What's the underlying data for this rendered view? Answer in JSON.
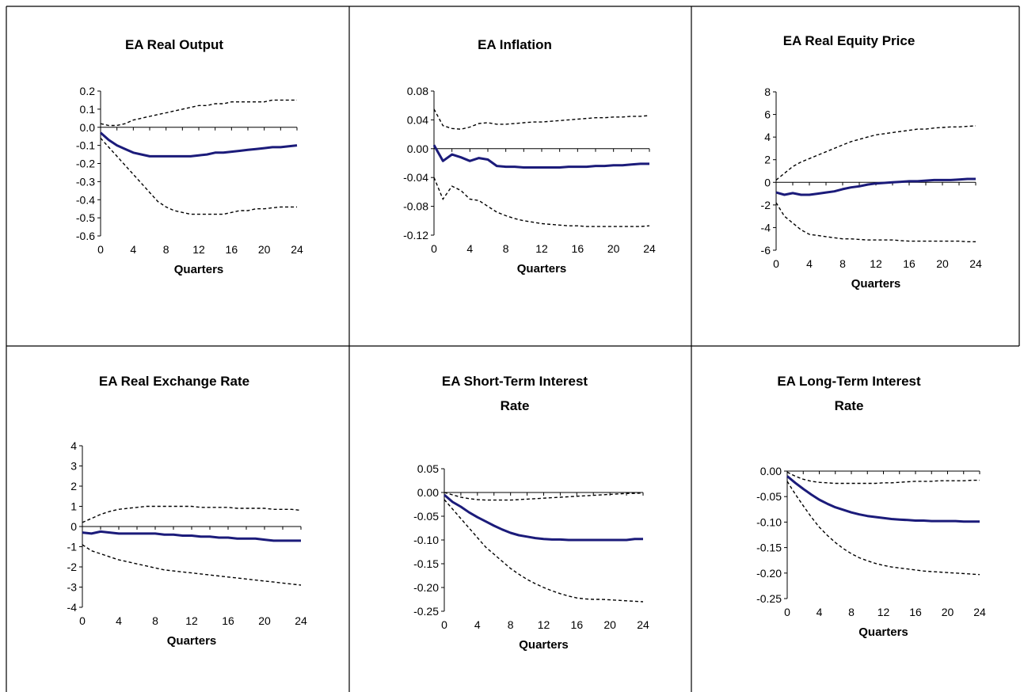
{
  "chart_data": [
    {
      "type": "line",
      "title": [
        "EA Real Output"
      ],
      "xlabel": "Quarters",
      "xlim": [
        0,
        24
      ],
      "xticks": [
        0,
        4,
        8,
        12,
        16,
        20,
        24
      ],
      "ylim": [
        -0.6,
        0.2
      ],
      "yticks": [
        "0.2",
        "0.1",
        "0.0",
        "-0.1",
        "-0.2",
        "-0.3",
        "-0.4",
        "-0.5",
        "-0.6"
      ],
      "x": [
        0,
        1,
        2,
        3,
        4,
        5,
        6,
        7,
        8,
        9,
        10,
        11,
        12,
        13,
        14,
        15,
        16,
        17,
        18,
        19,
        20,
        21,
        22,
        23,
        24
      ],
      "series": [
        {
          "role": "median",
          "values": [
            -0.03,
            -0.07,
            -0.1,
            -0.12,
            -0.14,
            -0.15,
            -0.16,
            -0.16,
            -0.16,
            -0.16,
            -0.16,
            -0.16,
            -0.155,
            -0.15,
            -0.14,
            -0.14,
            -0.135,
            -0.13,
            -0.125,
            -0.12,
            -0.115,
            -0.11,
            -0.11,
            -0.105,
            -0.1
          ]
        },
        {
          "role": "upper",
          "values": [
            0.02,
            0.01,
            0.01,
            0.02,
            0.04,
            0.05,
            0.06,
            0.07,
            0.08,
            0.09,
            0.1,
            0.11,
            0.12,
            0.12,
            0.13,
            0.13,
            0.14,
            0.14,
            0.14,
            0.14,
            0.14,
            0.15,
            0.15,
            0.15,
            0.15
          ]
        },
        {
          "role": "lower",
          "values": [
            -0.06,
            -0.11,
            -0.16,
            -0.21,
            -0.26,
            -0.31,
            -0.36,
            -0.41,
            -0.44,
            -0.46,
            -0.47,
            -0.48,
            -0.48,
            -0.48,
            -0.48,
            -0.48,
            -0.47,
            -0.46,
            -0.46,
            -0.45,
            -0.45,
            -0.445,
            -0.44,
            -0.44,
            -0.44
          ]
        }
      ]
    },
    {
      "type": "line",
      "title": [
        "EA Inflation"
      ],
      "xlabel": "Quarters",
      "xlim": [
        0,
        24
      ],
      "xticks": [
        0,
        4,
        8,
        12,
        16,
        20,
        24
      ],
      "ylim": [
        -0.12,
        0.08
      ],
      "yticks": [
        "0.08",
        "0.04",
        "0.00",
        "-0.04",
        "-0.08",
        "-0.12"
      ],
      "x": [
        0,
        1,
        2,
        3,
        4,
        5,
        6,
        7,
        8,
        9,
        10,
        11,
        12,
        13,
        14,
        15,
        16,
        17,
        18,
        19,
        20,
        21,
        22,
        23,
        24
      ],
      "series": [
        {
          "role": "median",
          "values": [
            0.005,
            -0.017,
            -0.008,
            -0.012,
            -0.017,
            -0.013,
            -0.015,
            -0.024,
            -0.025,
            -0.025,
            -0.026,
            -0.026,
            -0.026,
            -0.026,
            -0.026,
            -0.025,
            -0.025,
            -0.025,
            -0.024,
            -0.024,
            -0.023,
            -0.023,
            -0.022,
            -0.021,
            -0.021
          ]
        },
        {
          "role": "upper",
          "values": [
            0.055,
            0.032,
            0.028,
            0.027,
            0.03,
            0.035,
            0.036,
            0.034,
            0.034,
            0.035,
            0.036,
            0.037,
            0.037,
            0.038,
            0.039,
            0.04,
            0.041,
            0.042,
            0.043,
            0.043,
            0.044,
            0.044,
            0.045,
            0.045,
            0.046
          ]
        },
        {
          "role": "lower",
          "values": [
            -0.04,
            -0.07,
            -0.052,
            -0.058,
            -0.07,
            -0.072,
            -0.08,
            -0.088,
            -0.093,
            -0.097,
            -0.1,
            -0.102,
            -0.104,
            -0.105,
            -0.106,
            -0.107,
            -0.107,
            -0.108,
            -0.108,
            -0.108,
            -0.108,
            -0.108,
            -0.108,
            -0.108,
            -0.107
          ]
        }
      ]
    },
    {
      "type": "line",
      "title": [
        "EA Real Equity Price"
      ],
      "xlabel": "Quarters",
      "xlim": [
        0,
        24
      ],
      "xticks": [
        0,
        4,
        8,
        12,
        16,
        20,
        24
      ],
      "ylim": [
        -6,
        8
      ],
      "yticks": [
        "8",
        "6",
        "4",
        "2",
        "0",
        "-2",
        "-4",
        "-6"
      ],
      "x": [
        0,
        1,
        2,
        3,
        4,
        5,
        6,
        7,
        8,
        9,
        10,
        11,
        12,
        13,
        14,
        15,
        16,
        17,
        18,
        19,
        20,
        21,
        22,
        23,
        24
      ],
      "series": [
        {
          "role": "median",
          "values": [
            -0.9,
            -1.1,
            -0.95,
            -1.1,
            -1.1,
            -1.0,
            -0.9,
            -0.8,
            -0.6,
            -0.45,
            -0.35,
            -0.2,
            -0.1,
            -0.05,
            0.0,
            0.05,
            0.1,
            0.1,
            0.15,
            0.2,
            0.2,
            0.2,
            0.25,
            0.3,
            0.3
          ]
        },
        {
          "role": "upper",
          "values": [
            0.2,
            0.8,
            1.4,
            1.8,
            2.1,
            2.4,
            2.7,
            3.0,
            3.3,
            3.6,
            3.8,
            4.0,
            4.2,
            4.3,
            4.4,
            4.5,
            4.6,
            4.7,
            4.7,
            4.8,
            4.85,
            4.9,
            4.9,
            4.95,
            5.0
          ]
        },
        {
          "role": "lower",
          "values": [
            -1.8,
            -3.0,
            -3.6,
            -4.2,
            -4.6,
            -4.7,
            -4.8,
            -4.9,
            -5.0,
            -5.0,
            -5.05,
            -5.1,
            -5.1,
            -5.1,
            -5.1,
            -5.15,
            -5.2,
            -5.2,
            -5.2,
            -5.2,
            -5.2,
            -5.2,
            -5.2,
            -5.25,
            -5.25
          ]
        }
      ]
    },
    {
      "type": "line",
      "title": [
        "EA Real Exchange Rate"
      ],
      "xlabel": "Quarters",
      "xlim": [
        0,
        24
      ],
      "xticks": [
        0,
        4,
        8,
        12,
        16,
        20,
        24
      ],
      "ylim": [
        -4,
        4
      ],
      "yticks": [
        "4",
        "3",
        "2",
        "1",
        "0",
        "-1",
        "-2",
        "-3",
        "-4"
      ],
      "x": [
        0,
        1,
        2,
        3,
        4,
        5,
        6,
        7,
        8,
        9,
        10,
        11,
        12,
        13,
        14,
        15,
        16,
        17,
        18,
        19,
        20,
        21,
        22,
        23,
        24
      ],
      "series": [
        {
          "role": "median",
          "values": [
            -0.3,
            -0.35,
            -0.25,
            -0.3,
            -0.35,
            -0.35,
            -0.35,
            -0.35,
            -0.35,
            -0.4,
            -0.4,
            -0.45,
            -0.45,
            -0.5,
            -0.5,
            -0.55,
            -0.55,
            -0.6,
            -0.6,
            -0.6,
            -0.65,
            -0.7,
            -0.7,
            -0.7,
            -0.7
          ]
        },
        {
          "role": "upper",
          "values": [
            0.2,
            0.4,
            0.6,
            0.75,
            0.85,
            0.9,
            0.95,
            1.0,
            1.0,
            1.0,
            1.0,
            1.0,
            1.0,
            0.95,
            0.95,
            0.95,
            0.95,
            0.9,
            0.9,
            0.9,
            0.9,
            0.85,
            0.85,
            0.85,
            0.8
          ]
        },
        {
          "role": "lower",
          "values": [
            -0.9,
            -1.2,
            -1.35,
            -1.5,
            -1.65,
            -1.75,
            -1.85,
            -1.95,
            -2.05,
            -2.15,
            -2.2,
            -2.25,
            -2.3,
            -2.35,
            -2.4,
            -2.45,
            -2.5,
            -2.55,
            -2.6,
            -2.65,
            -2.7,
            -2.75,
            -2.8,
            -2.85,
            -2.9
          ]
        }
      ]
    },
    {
      "type": "line",
      "title": [
        "EA Short-Term Interest",
        "Rate"
      ],
      "xlabel": "Quarters",
      "xlim": [
        0,
        24
      ],
      "xticks": [
        0,
        4,
        8,
        12,
        16,
        20,
        24
      ],
      "ylim": [
        -0.25,
        0.05
      ],
      "yticks": [
        "0.05",
        "0.00",
        "-0.05",
        "-0.10",
        "-0.15",
        "-0.20",
        "-0.25"
      ],
      "x": [
        0,
        1,
        2,
        3,
        4,
        5,
        6,
        7,
        8,
        9,
        10,
        11,
        12,
        13,
        14,
        15,
        16,
        17,
        18,
        19,
        20,
        21,
        22,
        23,
        24
      ],
      "series": [
        {
          "role": "median",
          "values": [
            -0.005,
            -0.02,
            -0.03,
            -0.042,
            -0.052,
            -0.061,
            -0.07,
            -0.078,
            -0.085,
            -0.09,
            -0.093,
            -0.096,
            -0.098,
            -0.099,
            -0.099,
            -0.1,
            -0.1,
            -0.1,
            -0.1,
            -0.1,
            -0.1,
            -0.1,
            -0.1,
            -0.098,
            -0.098
          ]
        },
        {
          "role": "upper",
          "values": [
            0.0,
            -0.005,
            -0.01,
            -0.013,
            -0.015,
            -0.016,
            -0.016,
            -0.016,
            -0.016,
            -0.015,
            -0.014,
            -0.013,
            -0.012,
            -0.011,
            -0.01,
            -0.009,
            -0.008,
            -0.007,
            -0.006,
            -0.005,
            -0.004,
            -0.003,
            -0.002,
            -0.002,
            -0.001
          ]
        },
        {
          "role": "lower",
          "values": [
            -0.015,
            -0.035,
            -0.055,
            -0.075,
            -0.095,
            -0.115,
            -0.13,
            -0.145,
            -0.16,
            -0.172,
            -0.183,
            -0.192,
            -0.2,
            -0.207,
            -0.213,
            -0.218,
            -0.222,
            -0.224,
            -0.225,
            -0.225,
            -0.226,
            -0.227,
            -0.228,
            -0.229,
            -0.23
          ]
        }
      ]
    },
    {
      "type": "line",
      "title": [
        "EA Long-Term Interest",
        "Rate"
      ],
      "xlabel": "Quarters",
      "xlim": [
        0,
        24
      ],
      "xticks": [
        0,
        4,
        8,
        12,
        16,
        20,
        24
      ],
      "ylim": [
        -0.25,
        0.0
      ],
      "yticks": [
        "0.00",
        "-0.05",
        "-0.10",
        "-0.15",
        "-0.20",
        "-0.25"
      ],
      "x": [
        0,
        1,
        2,
        3,
        4,
        5,
        6,
        7,
        8,
        9,
        10,
        11,
        12,
        13,
        14,
        15,
        16,
        17,
        18,
        19,
        20,
        21,
        22,
        23,
        24
      ],
      "series": [
        {
          "role": "median",
          "values": [
            -0.01,
            -0.023,
            -0.035,
            -0.046,
            -0.056,
            -0.064,
            -0.071,
            -0.076,
            -0.081,
            -0.085,
            -0.088,
            -0.09,
            -0.092,
            -0.094,
            -0.095,
            -0.096,
            -0.097,
            -0.097,
            -0.098,
            -0.098,
            -0.098,
            -0.098,
            -0.099,
            -0.099,
            -0.099
          ]
        },
        {
          "role": "upper",
          "values": [
            -0.002,
            -0.01,
            -0.016,
            -0.02,
            -0.022,
            -0.023,
            -0.024,
            -0.024,
            -0.024,
            -0.024,
            -0.024,
            -0.024,
            -0.023,
            -0.023,
            -0.022,
            -0.021,
            -0.02,
            -0.02,
            -0.02,
            -0.019,
            -0.019,
            -0.019,
            -0.019,
            -0.018,
            -0.018
          ]
        },
        {
          "role": "lower",
          "values": [
            -0.02,
            -0.045,
            -0.068,
            -0.09,
            -0.11,
            -0.126,
            -0.14,
            -0.152,
            -0.162,
            -0.17,
            -0.176,
            -0.181,
            -0.185,
            -0.188,
            -0.19,
            -0.192,
            -0.194,
            -0.196,
            -0.197,
            -0.198,
            -0.199,
            -0.2,
            -0.201,
            -0.202,
            -0.203
          ]
        }
      ]
    }
  ]
}
